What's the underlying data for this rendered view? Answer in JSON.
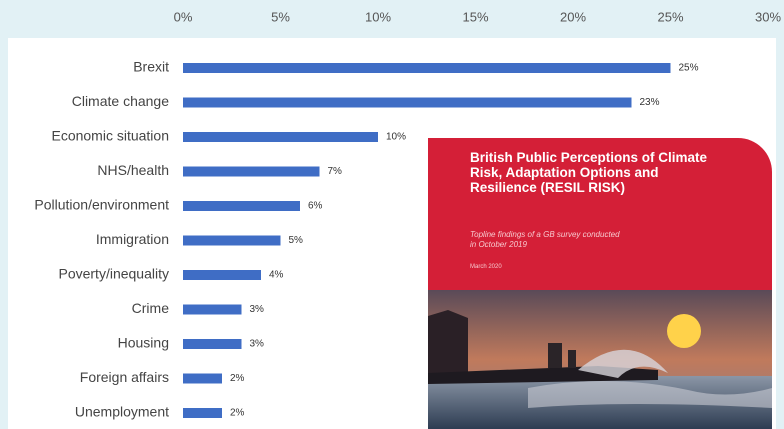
{
  "chart_data": {
    "type": "barh",
    "categories": [
      "Brexit",
      "Climate change",
      "Economic situation",
      "NHS/health",
      "Pollution/environment",
      "Immigration",
      "Poverty/inequality",
      "Crime",
      "Housing",
      "Foreign affairs",
      "Unemployment"
    ],
    "values": [
      25,
      23,
      10,
      7,
      6,
      5,
      4,
      3,
      3,
      2,
      2
    ],
    "value_labels": [
      "25%",
      "23%",
      "10%",
      "7%",
      "6%",
      "5%",
      "4%",
      "3%",
      "3%",
      "2%",
      "2%"
    ],
    "color": "#3f6dc5",
    "xlim": [
      0,
      30
    ],
    "xticks": [
      {
        "value": 0,
        "label": "0%"
      },
      {
        "value": 5,
        "label": "5%"
      },
      {
        "value": 10,
        "label": "10%"
      },
      {
        "value": 15,
        "label": "15%"
      },
      {
        "value": 20,
        "label": "20%"
      },
      {
        "value": 25,
        "label": "25%"
      },
      {
        "value": 30,
        "label": "30%"
      }
    ],
    "grid": false,
    "cover": {
      "title": "British Public Perceptions of Climate Risk, Adaptation Options and Resilience (RESIL RISK)",
      "subtitle": "Topline findings of a GB survey conducted in October 2019",
      "date": "March 2020"
    }
  }
}
